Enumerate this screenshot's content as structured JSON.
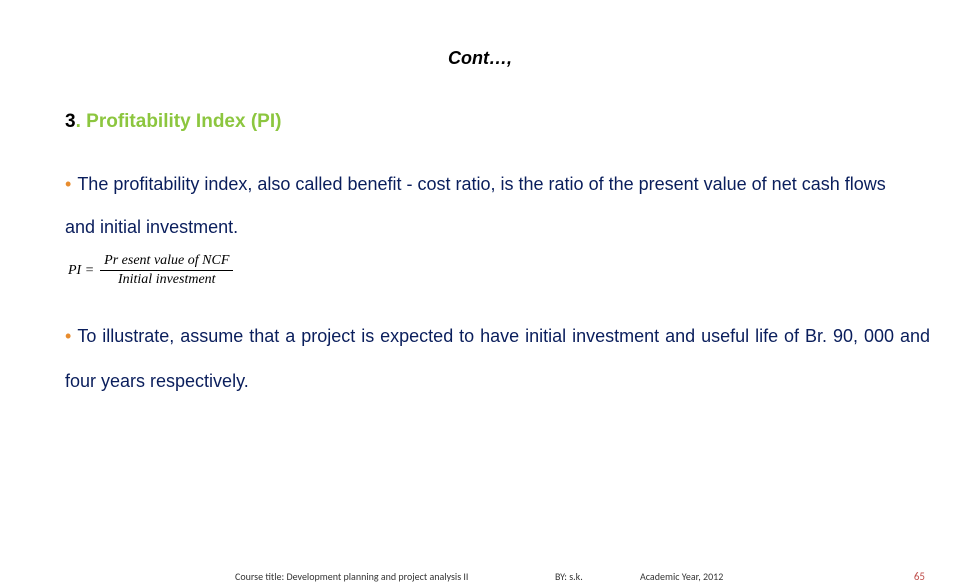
{
  "title": "Cont…,",
  "section": {
    "number": "3",
    "dot": ". ",
    "title": "Profitability Index (PI)"
  },
  "bullet1": "The profitability index, also called benefit - cost ratio, is the ratio of the present value of net cash flows and initial investment.",
  "formula": {
    "label": "PI =",
    "numerator": "Pr esent value of  NCF",
    "denominator": "Initial investment"
  },
  "bullet2": "To illustrate, assume that a project is expected to have initial investment and useful life of Br. 90, 000 and four years respectively.",
  "footer": {
    "course": "Course title: Development planning and project analysis II",
    "by": "BY: s.k.",
    "year": "Academic Year, 2012",
    "page": "65"
  },
  "colors": {
    "section_title": "#8cc63f",
    "body_text": "#0a1e5c",
    "bullet_dot": "#e88c2e",
    "page_number": "#c0504d",
    "background": "#ffffff"
  }
}
